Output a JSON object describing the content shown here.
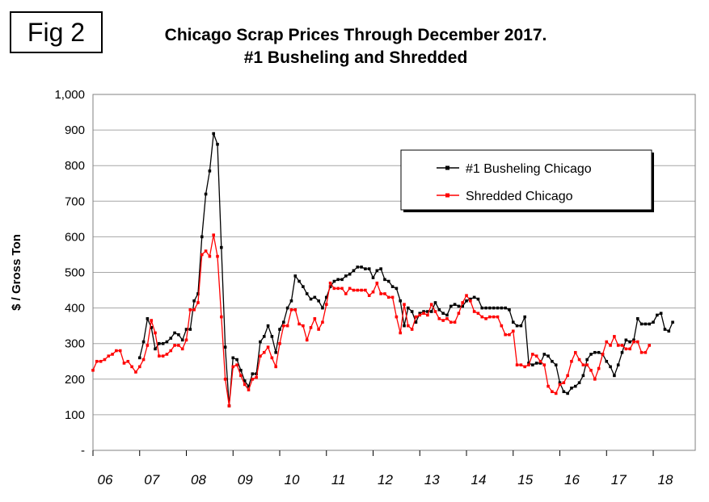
{
  "figure_label": "Fig 2",
  "title_line1": "Chicago Scrap Prices Through December 2017.",
  "title_line2": "#1 Busheling and Shredded",
  "chart_data": {
    "type": "line",
    "title": "Chicago Scrap Prices Through December 2017. #1 Busheling and Shredded",
    "ylabel": "$ / Gross Ton",
    "xlabel": "",
    "ylim": [
      0,
      1000
    ],
    "y_ticks": [
      0,
      100,
      200,
      300,
      400,
      500,
      600,
      700,
      800,
      900,
      1000
    ],
    "y_tick_labels": [
      "-",
      "100",
      "200",
      "300",
      "400",
      "500",
      "600",
      "700",
      "800",
      "900",
      "1,000"
    ],
    "x_tick_labels": [
      "06",
      "07",
      "08",
      "09",
      "10",
      "11",
      "12",
      "13",
      "14",
      "15",
      "16",
      "17",
      "18"
    ],
    "x_unit": "year index (0 = January 2006, 1 month = 1/12)",
    "x_range": [
      0,
      12.9
    ],
    "grid": "horizontal",
    "legend_position": "top-right",
    "series": [
      {
        "name": "#1 Busheling Chicago",
        "color": "#000000",
        "start_month": 12,
        "values": [
          260,
          305,
          370,
          345,
          285,
          300,
          300,
          305,
          315,
          330,
          325,
          310,
          340,
          340,
          420,
          440,
          600,
          720,
          785,
          890,
          860,
          570,
          290,
          125,
          260,
          255,
          225,
          195,
          180,
          215,
          215,
          305,
          320,
          350,
          320,
          275,
          340,
          360,
          400,
          420,
          490,
          475,
          460,
          440,
          425,
          430,
          420,
          400,
          430,
          460,
          475,
          480,
          480,
          490,
          495,
          505,
          515,
          515,
          510,
          510,
          485,
          505,
          510,
          480,
          475,
          460,
          455,
          420,
          350,
          400,
          390,
          360,
          385,
          390,
          390,
          390,
          415,
          395,
          385,
          380,
          405,
          410,
          405,
          405,
          420,
          425,
          430,
          425,
          400,
          400,
          400,
          400,
          400,
          400,
          400,
          395,
          360,
          350,
          350,
          375,
          245,
          240,
          245,
          245,
          270,
          265,
          250,
          240,
          190,
          165,
          160,
          175,
          180,
          190,
          210,
          255,
          270,
          275,
          275,
          270,
          250,
          235,
          210,
          240,
          275,
          310,
          305,
          310,
          370,
          355,
          355,
          355,
          360,
          380,
          385,
          340,
          335,
          360
        ]
      },
      {
        "name": "Shredded Chicago",
        "color": "#ff0000",
        "start_month": 0,
        "values": [
          225,
          250,
          250,
          255,
          265,
          270,
          280,
          280,
          245,
          250,
          235,
          220,
          235,
          255,
          295,
          365,
          330,
          265,
          265,
          270,
          280,
          295,
          295,
          285,
          310,
          395,
          395,
          415,
          550,
          560,
          545,
          605,
          545,
          375,
          200,
          125,
          235,
          240,
          210,
          185,
          170,
          200,
          205,
          265,
          275,
          290,
          260,
          235,
          300,
          350,
          350,
          395,
          395,
          355,
          350,
          310,
          345,
          370,
          340,
          360,
          410,
          470,
          455,
          455,
          455,
          440,
          455,
          450,
          450,
          450,
          450,
          435,
          445,
          470,
          440,
          440,
          430,
          430,
          375,
          330,
          410,
          350,
          340,
          375,
          380,
          385,
          380,
          410,
          390,
          370,
          365,
          370,
          360,
          360,
          385,
          415,
          435,
          420,
          390,
          385,
          375,
          370,
          375,
          375,
          375,
          350,
          325,
          325,
          335,
          240,
          240,
          235,
          240,
          270,
          265,
          250,
          240,
          180,
          165,
          160,
          185,
          190,
          210,
          250,
          275,
          255,
          240,
          240,
          225,
          200,
          230,
          270,
          305,
          295,
          320,
          295,
          295,
          285,
          285,
          305,
          305,
          275,
          275,
          295
        ]
      }
    ]
  }
}
